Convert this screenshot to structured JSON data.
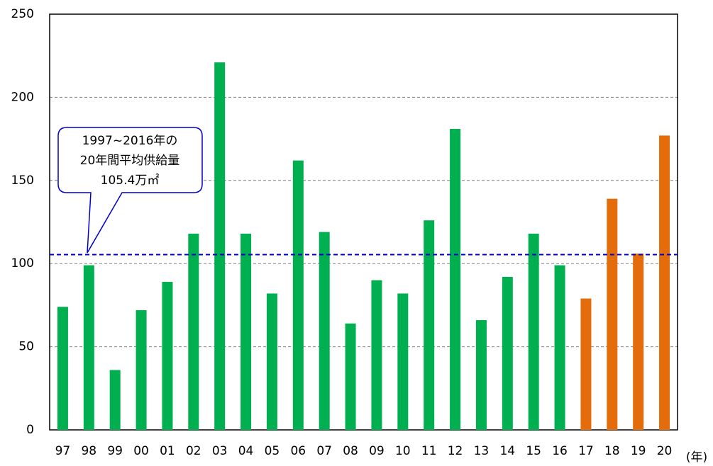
{
  "chart_data": {
    "type": "bar",
    "categories": [
      "97",
      "98",
      "99",
      "00",
      "01",
      "02",
      "03",
      "04",
      "05",
      "06",
      "07",
      "08",
      "09",
      "10",
      "11",
      "12",
      "13",
      "14",
      "15",
      "16",
      "17",
      "18",
      "19",
      "20"
    ],
    "values": [
      74,
      99,
      36,
      72,
      89,
      118,
      221,
      118,
      82,
      162,
      119,
      64,
      90,
      82,
      126,
      181,
      66,
      92,
      118,
      99,
      79,
      139,
      106,
      177
    ],
    "colors": [
      "#00b050",
      "#00b050",
      "#00b050",
      "#00b050",
      "#00b050",
      "#00b050",
      "#00b050",
      "#00b050",
      "#00b050",
      "#00b050",
      "#00b050",
      "#00b050",
      "#00b050",
      "#00b050",
      "#00b050",
      "#00b050",
      "#00b050",
      "#00b050",
      "#00b050",
      "#00b050",
      "#e46c0a",
      "#e46c0a",
      "#e46c0a",
      "#e46c0a"
    ],
    "ylim": [
      0,
      250
    ],
    "yticks": [
      0,
      50,
      100,
      150,
      200,
      250
    ],
    "grid": true,
    "x_unit": "(年)",
    "average": {
      "value": 105.4,
      "color": "#0000cc",
      "label_lines": [
        "1997~2016年の",
        "20年間平均供給量",
        "105.4万㎡"
      ]
    }
  }
}
